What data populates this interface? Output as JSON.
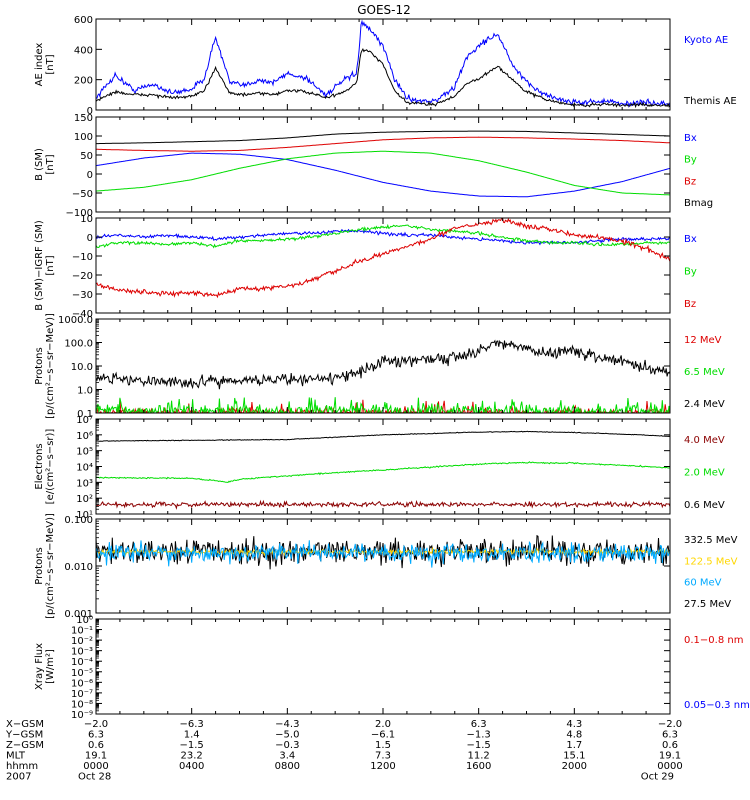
{
  "chart_data": {
    "type": "line",
    "title": "GOES-12",
    "panels": [
      {
        "id": "ae",
        "ylabel": [
          "AE index",
          "[nT]"
        ],
        "scale": "linear",
        "ylim": [
          0,
          600
        ],
        "yticks": [
          0,
          200,
          400,
          600
        ],
        "tick_labels": [
          "0",
          "200",
          "400",
          "600"
        ],
        "series": [
          {
            "name": "Kyoto AE",
            "color": "#0000ff",
            "noise": 18,
            "x": [
              0,
              0.8,
              1.6,
              2.4,
              3.2,
              4.0,
              4.5,
              5.0,
              5.6,
              6.2,
              6.8,
              7.4,
              8.0,
              8.8,
              9.6,
              10.4,
              10.9,
              11.1,
              11.5,
              12.0,
              12.5,
              13.0,
              13.6,
              14.2,
              15.0,
              15.5,
              16.0,
              16.4,
              16.8,
              17.4,
              18.0,
              18.8,
              19.6,
              20.4,
              21.2,
              22.0,
              22.8,
              24.0
            ],
            "y": [
              80,
              230,
              130,
              170,
              110,
              140,
              200,
              480,
              180,
              160,
              200,
              180,
              240,
              210,
              100,
              200,
              240,
              580,
              520,
              420,
              200,
              80,
              60,
              60,
              150,
              350,
              420,
              470,
              500,
              300,
              180,
              100,
              60,
              50,
              60,
              40,
              50,
              40
            ]
          },
          {
            "name": "Themis AE",
            "color": "#000000",
            "noise": 10,
            "x": [
              0,
              0.8,
              1.6,
              2.4,
              3.2,
              4.0,
              4.5,
              5.0,
              5.6,
              6.2,
              6.8,
              7.4,
              8.0,
              8.8,
              9.6,
              10.4,
              10.9,
              11.1,
              11.5,
              12.0,
              12.5,
              13.0,
              13.6,
              14.2,
              15.0,
              15.5,
              16.0,
              16.4,
              16.8,
              17.4,
              18.0,
              18.8,
              19.6,
              20.4,
              21.2,
              22.0,
              22.8,
              24.0
            ],
            "y": [
              60,
              120,
              100,
              100,
              80,
              90,
              120,
              280,
              110,
              100,
              110,
              100,
              130,
              120,
              80,
              120,
              180,
              400,
              380,
              300,
              120,
              50,
              40,
              40,
              90,
              180,
              200,
              250,
              290,
              200,
              120,
              70,
              40,
              30,
              40,
              30,
              35,
              30
            ]
          }
        ]
      },
      {
        "id": "bsm",
        "ylabel": [
          "B (SM)",
          "[nT]"
        ],
        "scale": "linear",
        "ylim": [
          -100,
          150
        ],
        "yticks": [
          -100,
          -50,
          0,
          50,
          100,
          150
        ],
        "tick_labels": [
          "−100",
          "−50",
          "0",
          "50",
          "100",
          "150"
        ],
        "series": [
          {
            "name": "Bx",
            "color": "#0000ff",
            "noise": 0,
            "x": [
              0,
              2,
              4,
              6,
              8,
              10,
              12,
              14,
              16,
              18,
              20,
              22,
              24
            ],
            "y": [
              22,
              42,
              55,
              52,
              38,
              10,
              -22,
              -45,
              -58,
              -60,
              -45,
              -20,
              15
            ]
          },
          {
            "name": "By",
            "color": "#00dd00",
            "noise": 0,
            "x": [
              0,
              2,
              4,
              6,
              8,
              10,
              12,
              14,
              16,
              18,
              20,
              22,
              24
            ],
            "y": [
              -45,
              -35,
              -15,
              15,
              40,
              55,
              60,
              55,
              35,
              5,
              -30,
              -50,
              -55
            ]
          },
          {
            "name": "Bz",
            "color": "#dd0000",
            "noise": 0,
            "x": [
              0,
              2,
              4,
              6,
              8,
              10,
              12,
              14,
              16,
              18,
              20,
              22,
              24
            ],
            "y": [
              65,
              62,
              60,
              62,
              70,
              80,
              90,
              95,
              97,
              95,
              92,
              88,
              82
            ]
          },
          {
            "name": "Bmag",
            "color": "#000000",
            "noise": 0,
            "x": [
              0,
              2,
              4,
              6,
              8,
              10,
              12,
              14,
              16,
              18,
              20,
              22,
              24
            ],
            "y": [
              80,
              82,
              85,
              88,
              95,
              105,
              110,
              112,
              113,
              112,
              108,
              104,
              100
            ]
          }
        ]
      },
      {
        "id": "bdiff",
        "ylabel": [
          "B (SM)−IGRF (SM)",
          "[nT]"
        ],
        "scale": "linear",
        "ylim": [
          -40,
          10
        ],
        "yticks": [
          -40,
          -30,
          -20,
          -10,
          0,
          10
        ],
        "tick_labels": [
          "−40",
          "−30",
          "−20",
          "−10",
          "0",
          "10"
        ],
        "series": [
          {
            "name": "Bx",
            "color": "#0000ff",
            "noise": 0.8,
            "x": [
              0,
              1,
              2,
              3,
              4,
              5,
              6,
              7,
              8,
              9,
              10,
              11,
              12,
              13,
              14,
              15,
              16,
              17,
              18,
              19,
              20,
              21,
              22,
              23,
              24
            ],
            "y": [
              0,
              1,
              0,
              1,
              0,
              -1,
              0,
              1,
              2,
              2,
              3,
              3,
              2,
              1,
              1,
              0,
              -1,
              -2,
              -3,
              -3,
              -3,
              -2,
              -1,
              -1,
              -1
            ]
          },
          {
            "name": "By",
            "color": "#00dd00",
            "noise": 0.8,
            "x": [
              0,
              1,
              2,
              3,
              4,
              5,
              6,
              7,
              8,
              9,
              10,
              11,
              12,
              13,
              14,
              15,
              16,
              17,
              18,
              19,
              20,
              21,
              22,
              23,
              24
            ],
            "y": [
              -5,
              -3,
              -3,
              -4,
              -3,
              -5,
              -2,
              -2,
              -1,
              0,
              2,
              4,
              5,
              6,
              4,
              3,
              2,
              0,
              -2,
              -3,
              -3,
              -4,
              -4,
              -3,
              -3
            ]
          },
          {
            "name": "Bz",
            "color": "#dd0000",
            "noise": 1.2,
            "x": [
              0,
              1,
              2,
              3,
              4,
              5,
              6,
              7,
              8,
              9,
              10,
              11,
              12,
              13,
              14,
              15,
              16,
              17,
              18,
              19,
              20,
              21,
              22,
              23,
              24
            ],
            "y": [
              -25,
              -28,
              -29,
              -30,
              -29,
              -31,
              -27,
              -27,
              -26,
              -23,
              -18,
              -13,
              -9,
              -5,
              -1,
              5,
              7,
              9,
              6,
              4,
              1,
              0,
              -2,
              -6,
              -12
            ]
          }
        ]
      },
      {
        "id": "protons",
        "ylabel": [
          "Protons",
          "[p/(cm²−s−sr−MeV)]"
        ],
        "scale": "log",
        "ylim": [
          0.1,
          1000
        ],
        "yticks": [
          0.1,
          1,
          10,
          100,
          1000
        ],
        "tick_labels": [
          "0.1",
          "1.0",
          "10.0",
          "100.0",
          "1000.0"
        ],
        "series": [
          {
            "name": "12 MeV",
            "color": "#dd0000",
            "noise": 0.2,
            "spiky": true,
            "x": [
              0,
              24
            ],
            "y": [
              0.1,
              0.1
            ]
          },
          {
            "name": "6.5 MeV",
            "color": "#00dd00",
            "noise": 0.3,
            "spiky": true,
            "x": [
              0,
              24
            ],
            "y": [
              0.12,
              0.12
            ]
          },
          {
            "name": "2.4 MeV",
            "color": "#000000",
            "noise": 0.25,
            "x": [
              0,
              2,
              4,
              6,
              8,
              10,
              11,
              12,
              13,
              14,
              15,
              16,
              16.8,
              17.5,
              18.5,
              20,
              21,
              22,
              23,
              24
            ],
            "y": [
              3,
              2.5,
              2,
              2.5,
              2.8,
              3,
              5,
              15,
              20,
              18,
              25,
              40,
              100,
              70,
              40,
              40,
              25,
              15,
              8,
              5
            ]
          }
        ]
      },
      {
        "id": "electrons",
        "ylabel": [
          "Electrons",
          "[e/(cm²−s−sr)]"
        ],
        "scale": "log",
        "ylim": [
          10,
          10000000
        ],
        "yticks": [
          10,
          100,
          1000,
          10000,
          100000,
          1000000,
          10000000
        ],
        "tick_labels": [
          "10¹",
          "10²",
          "10³",
          "10⁴",
          "10⁵",
          "10⁶",
          "10⁷"
        ],
        "series": [
          {
            "name": "4.0 MeV",
            "color": "#8b0000",
            "noise": 0.15,
            "x": [
              0,
              24
            ],
            "y": [
              40,
              40
            ]
          },
          {
            "name": "2.0 MeV",
            "color": "#00dd00",
            "noise": 0.04,
            "x": [
              0,
              4,
              5.5,
              6,
              8,
              10,
              12,
              14,
              16,
              18,
              20,
              22,
              24
            ],
            "y": [
              2000,
              1800,
              1000,
              1500,
              2500,
              4000,
              6000,
              9000,
              14000,
              18000,
              16000,
              12000,
              8000
            ]
          },
          {
            "name": "0.6 MeV",
            "color": "#000000",
            "noise": 0.02,
            "x": [
              0,
              4,
              8,
              10,
              12,
              14,
              16,
              18,
              20,
              22,
              24
            ],
            "y": [
              400000,
              450000,
              500000,
              700000,
              1000000,
              1200000,
              1500000,
              1600000,
              1400000,
              1100000,
              800000
            ]
          }
        ]
      },
      {
        "id": "hiprotons",
        "ylabel": [
          "Protons",
          "[p/(cm²−s−sr−MeV)]"
        ],
        "scale": "log",
        "ylim": [
          0.001,
          0.1
        ],
        "yticks": [
          0.001,
          0.01,
          0.1
        ],
        "tick_labels": [
          "0.001",
          "0.010",
          "0.100"
        ],
        "series": [
          {
            "name": "332.5 MeV",
            "color": "#000000",
            "noise": 0.28,
            "x": [
              0,
              24
            ],
            "y": [
              0.02,
              0.02
            ]
          },
          {
            "name": "122.5 MeV",
            "color": "#ffd700",
            "noise": 0.05,
            "x": [
              0,
              24
            ],
            "y": [
              0.02,
              0.02
            ]
          },
          {
            "name": "60 MeV",
            "color": "#00aaff",
            "noise": 0.2,
            "x": [
              0,
              24
            ],
            "y": [
              0.019,
              0.019
            ]
          },
          {
            "name": "27.5 MeV",
            "color": "#000000",
            "noise": 0,
            "x": [],
            "y": []
          }
        ]
      },
      {
        "id": "xray",
        "ylabel": [
          "Xray Flux",
          "[W/m²]"
        ],
        "scale": "log",
        "ylim": [
          1e-09,
          1
        ],
        "yticks": [
          1e-09,
          1e-08,
          1e-07,
          1e-06,
          1e-05,
          0.0001,
          0.001,
          0.01,
          0.1,
          1
        ],
        "tick_labels": [
          "10⁻⁹",
          "10⁻⁸",
          "10⁻⁷",
          "10⁻⁶",
          "10⁻⁵",
          "10⁻⁴",
          "10⁻³",
          "10⁻²",
          "10⁻¹",
          "10⁰"
        ],
        "series": [
          {
            "name": "0.1−0.8 nm",
            "color": "#dd0000",
            "noise": 0,
            "x": [],
            "y": []
          },
          {
            "name": "0.05−0.3 nm",
            "color": "#0000ff",
            "noise": 0,
            "x": [],
            "y": []
          }
        ]
      }
    ],
    "x_axis": {
      "range": [
        0,
        24
      ],
      "major_ticks": [
        0,
        4,
        8,
        12,
        16,
        20,
        24
      ],
      "row_labels": [
        "X−GSM",
        "Y−GSM",
        "Z−GSM",
        "MLT",
        "hhmm",
        "2007"
      ],
      "columns": [
        [
          "−2.0",
          "6.3",
          "0.6",
          "19.1",
          "0000",
          "Oct 28"
        ],
        [
          "−6.3",
          "1.4",
          "−1.5",
          "23.2",
          "0400",
          ""
        ],
        [
          "−4.3",
          "−5.0",
          "−0.3",
          "3.4",
          "0800",
          ""
        ],
        [
          "2.0",
          "−6.1",
          "1.5",
          "7.3",
          "1200",
          ""
        ],
        [
          "6.3",
          "−1.3",
          "−1.5",
          "11.2",
          "1600",
          ""
        ],
        [
          "4.3",
          "4.8",
          "1.7",
          "15.1",
          "2000",
          ""
        ],
        [
          "−2.0",
          "6.3",
          "0.6",
          "19.1",
          "0000",
          "Oct 29"
        ]
      ]
    }
  }
}
